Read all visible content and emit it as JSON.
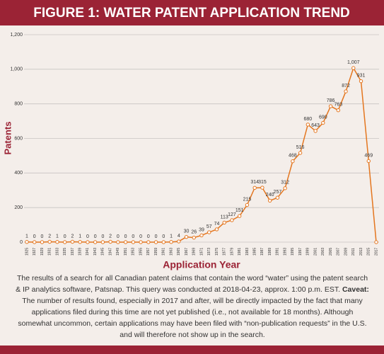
{
  "chart_data": {
    "type": "line",
    "title": "FIGURE 1: WATER PATENT APPLICATION TREND",
    "x_label": "Application Year",
    "y_label": "Patents",
    "categories": [
      "1925",
      "1927",
      "1929",
      "1931",
      "1933",
      "1935",
      "1937",
      "1939",
      "1941",
      "1943",
      "1945",
      "1947",
      "1949",
      "1951",
      "1953",
      "1955",
      "1957",
      "1959",
      "1961",
      "1963",
      "1965",
      "1967",
      "1969",
      "1971",
      "1973",
      "1975",
      "1977",
      "1979",
      "1981",
      "1983",
      "1985",
      "1987",
      "1989",
      "1991",
      "1993",
      "1995",
      "1997",
      "1999",
      "2001",
      "2003",
      "2005",
      "2007",
      "2009",
      "2011",
      "2013",
      "2015",
      "2017"
    ],
    "values": [
      1,
      0,
      0,
      2,
      1,
      0,
      2,
      1,
      0,
      0,
      0,
      2,
      0,
      0,
      0,
      0,
      0,
      0,
      0,
      1,
      4,
      30,
      26,
      39,
      57,
      74,
      113,
      127,
      151,
      215,
      314,
      315,
      240,
      257,
      312,
      468,
      516,
      680,
      643,
      690,
      786,
      763,
      872,
      1007,
      931,
      469,
      0
    ],
    "value_labels": [
      "1",
      "0",
      "0",
      "2",
      "1",
      "0",
      "2",
      "1",
      "0",
      "0",
      "0",
      "2",
      "0",
      "0",
      "0",
      "0",
      "0",
      "0",
      "0",
      "1",
      "4",
      "30",
      "26",
      "39",
      "57",
      "74",
      "113",
      "127",
      "151",
      "215",
      "314",
      "315",
      "240",
      "257",
      "312",
      "468",
      "516",
      "680",
      "643",
      "690",
      "786",
      "763",
      "872",
      "1,007",
      "931",
      "469",
      null
    ],
    "color": "#e4761f",
    "ylim": [
      0,
      1200
    ],
    "yticks": [
      0,
      200,
      400,
      600,
      800,
      {
        "value": 1000,
        "label": "1,000"
      },
      {
        "value": 1200,
        "label": "1,200"
      }
    ],
    "grid": true,
    "caption": {
      "intro": "The results of a search for all Canadian patent claims that contain the word “water” using the patent search & IP analytics software, Patsnap. This query was conducted at 2018-04-23, approx. 1:00 p.m. EST.",
      "caveat_label": "Caveat:",
      "caveat": "The number of results found, especially in 2017 and after, will be directly impacted by the fact that many applications filed during this time are not yet published (i.e., not available for 18 months). Although somewhat uncommon, certain applications may have been filed with “non-publication requests” in the U.S. and will therefore not show up in the search."
    }
  }
}
